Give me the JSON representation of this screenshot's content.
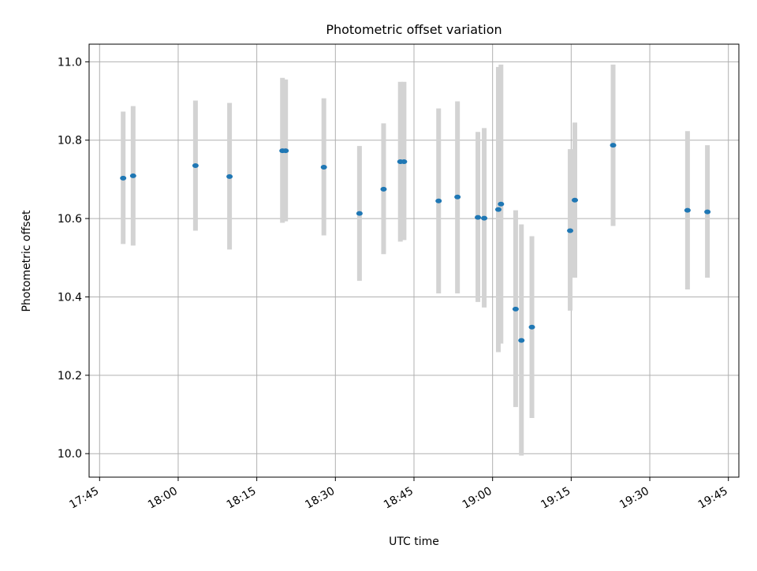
{
  "chart_data": {
    "type": "scatter",
    "title": "Photometric offset variation",
    "xlabel": "UTC time",
    "ylabel": "Photometric offset",
    "grid": true,
    "xlim": [
      "17:43",
      "19:47"
    ],
    "ylim": [
      9.94,
      11.045
    ],
    "x_ticks": [
      "17:45",
      "18:00",
      "18:15",
      "18:30",
      "18:45",
      "19:00",
      "19:15",
      "19:30",
      "19:45"
    ],
    "y_ticks": [
      "10.0",
      "10.2",
      "10.4",
      "10.6",
      "10.8",
      "11.0"
    ],
    "colors": {
      "point": "#1f77b4",
      "errorbar": "#d3d3d3",
      "grid": "#b0b0b0"
    },
    "points": [
      {
        "x": "17:49:30",
        "y": 10.703,
        "ylow": 10.535,
        "yhigh": 10.873
      },
      {
        "x": "17:51:24",
        "y": 10.709,
        "ylow": 10.531,
        "yhigh": 10.887
      },
      {
        "x": "18:03:18",
        "y": 10.735,
        "ylow": 10.569,
        "yhigh": 10.901
      },
      {
        "x": "18:09:48",
        "y": 10.707,
        "ylow": 10.521,
        "yhigh": 10.895
      },
      {
        "x": "18:19:54",
        "y": 10.773,
        "ylow": 10.589,
        "yhigh": 10.959
      },
      {
        "x": "18:20:30",
        "y": 10.773,
        "ylow": 10.593,
        "yhigh": 10.955
      },
      {
        "x": "18:27:48",
        "y": 10.731,
        "ylow": 10.557,
        "yhigh": 10.907
      },
      {
        "x": "18:34:36",
        "y": 10.613,
        "ylow": 10.441,
        "yhigh": 10.785
      },
      {
        "x": "18:39:12",
        "y": 10.675,
        "ylow": 10.509,
        "yhigh": 10.843
      },
      {
        "x": "18:42:24",
        "y": 10.745,
        "ylow": 10.541,
        "yhigh": 10.949
      },
      {
        "x": "18:43:06",
        "y": 10.745,
        "ylow": 10.545,
        "yhigh": 10.949
      },
      {
        "x": "18:49:42",
        "y": 10.645,
        "ylow": 10.409,
        "yhigh": 10.881
      },
      {
        "x": "18:53:18",
        "y": 10.655,
        "ylow": 10.409,
        "yhigh": 10.899
      },
      {
        "x": "18:57:12",
        "y": 10.603,
        "ylow": 10.387,
        "yhigh": 10.821
      },
      {
        "x": "18:58:24",
        "y": 10.601,
        "ylow": 10.373,
        "yhigh": 10.831
      },
      {
        "x": "19:01:06",
        "y": 10.623,
        "ylow": 10.259,
        "yhigh": 10.987
      },
      {
        "x": "19:01:36",
        "y": 10.637,
        "ylow": 10.281,
        "yhigh": 10.993
      },
      {
        "x": "19:04:24",
        "y": 10.369,
        "ylow": 10.119,
        "yhigh": 10.621
      },
      {
        "x": "19:05:30",
        "y": 10.289,
        "ylow": 9.995,
        "yhigh": 10.585
      },
      {
        "x": "19:07:30",
        "y": 10.323,
        "ylow": 10.091,
        "yhigh": 10.555
      },
      {
        "x": "19:14:48",
        "y": 10.569,
        "ylow": 10.365,
        "yhigh": 10.777
      },
      {
        "x": "19:15:42",
        "y": 10.647,
        "ylow": 10.449,
        "yhigh": 10.845
      },
      {
        "x": "19:23:00",
        "y": 10.787,
        "ylow": 10.581,
        "yhigh": 10.993
      },
      {
        "x": "19:37:12",
        "y": 10.621,
        "ylow": 10.419,
        "yhigh": 10.823
      },
      {
        "x": "19:41:00",
        "y": 10.617,
        "ylow": 10.449,
        "yhigh": 10.787
      }
    ]
  }
}
